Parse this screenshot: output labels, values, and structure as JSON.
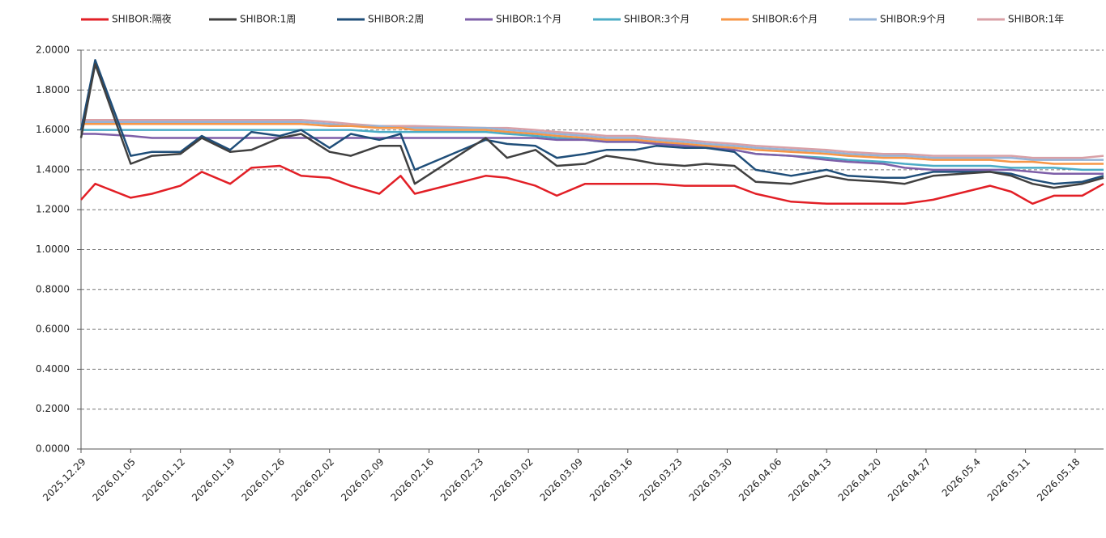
{
  "chart_data": {
    "type": "line",
    "x": [
      "2025.12.29",
      "2025.12.31",
      "2026.01.05",
      "2026.01.08",
      "2026.01.12",
      "2026.01.15",
      "2026.01.19",
      "2026.01.22",
      "2026.01.26",
      "2026.01.29",
      "2026.02.02",
      "2026.02.05",
      "2026.02.09",
      "2026.02.12",
      "2026.02.14",
      "2026.02.24",
      "2026.02.27",
      "2026.03.03",
      "2026.03.06",
      "2026.03.10",
      "2026.03.13",
      "2026.03.17",
      "2026.03.20",
      "2026.03.24",
      "2026.03.27",
      "2026.03.31",
      "2026.04.03",
      "2026.04.08",
      "2026.04.13",
      "2026.04.16",
      "2026.04.21",
      "2026.04.24",
      "2026.04.28",
      "2026.05.06",
      "2026.05.09",
      "2026.05.12",
      "2026.05.15",
      "2026.05.19",
      "2026.05.22"
    ],
    "series": [
      {
        "name": "SHIBOR:隔夜",
        "color": "#e21f26",
        "values": [
          1.25,
          1.33,
          1.26,
          1.28,
          1.32,
          1.39,
          1.33,
          1.41,
          1.42,
          1.37,
          1.36,
          1.32,
          1.28,
          1.37,
          1.28,
          1.37,
          1.36,
          1.32,
          1.27,
          1.33,
          1.33,
          1.33,
          1.33,
          1.32,
          1.32,
          1.32,
          1.28,
          1.24,
          1.23,
          1.23,
          1.23,
          1.23,
          1.25,
          1.32,
          1.29,
          1.23,
          1.27,
          1.27,
          1.33
        ]
      },
      {
        "name": "SHIBOR:1周",
        "color": "#404040",
        "values": [
          1.56,
          1.93,
          1.43,
          1.47,
          1.48,
          1.56,
          1.49,
          1.5,
          1.56,
          1.58,
          1.49,
          1.47,
          1.52,
          1.52,
          1.33,
          1.56,
          1.46,
          1.5,
          1.42,
          1.43,
          1.47,
          1.45,
          1.43,
          1.42,
          1.43,
          1.42,
          1.34,
          1.33,
          1.37,
          1.35,
          1.34,
          1.33,
          1.37,
          1.39,
          1.37,
          1.33,
          1.31,
          1.33,
          1.36
        ]
      },
      {
        "name": "SHIBOR:2周",
        "color": "#1f4e79",
        "values": [
          1.6,
          1.95,
          1.47,
          1.49,
          1.49,
          1.57,
          1.5,
          1.59,
          1.57,
          1.6,
          1.51,
          1.58,
          1.55,
          1.58,
          1.4,
          1.55,
          1.53,
          1.52,
          1.46,
          1.48,
          1.5,
          1.5,
          1.52,
          1.51,
          1.51,
          1.49,
          1.4,
          1.37,
          1.4,
          1.37,
          1.36,
          1.36,
          1.39,
          1.39,
          1.38,
          1.35,
          1.33,
          1.34,
          1.37
        ]
      },
      {
        "name": "SHIBOR:1个月",
        "color": "#7e5fa8",
        "values": [
          1.58,
          1.58,
          1.57,
          1.56,
          1.56,
          1.56,
          1.56,
          1.56,
          1.56,
          1.56,
          1.56,
          1.56,
          1.56,
          1.56,
          1.56,
          1.56,
          1.56,
          1.56,
          1.55,
          1.55,
          1.54,
          1.54,
          1.53,
          1.52,
          1.51,
          1.5,
          1.48,
          1.47,
          1.45,
          1.44,
          1.43,
          1.41,
          1.4,
          1.4,
          1.4,
          1.39,
          1.38,
          1.38,
          1.38
        ]
      },
      {
        "name": "SHIBOR:3个月",
        "color": "#4bacc6",
        "values": [
          1.6,
          1.6,
          1.6,
          1.6,
          1.6,
          1.6,
          1.6,
          1.6,
          1.6,
          1.6,
          1.6,
          1.6,
          1.59,
          1.59,
          1.59,
          1.59,
          1.58,
          1.57,
          1.56,
          1.55,
          1.54,
          1.54,
          1.53,
          1.52,
          1.51,
          1.5,
          1.48,
          1.47,
          1.46,
          1.45,
          1.44,
          1.43,
          1.42,
          1.42,
          1.41,
          1.41,
          1.41,
          1.4,
          1.4
        ]
      },
      {
        "name": "SHIBOR:6个月",
        "color": "#f79646",
        "values": [
          1.63,
          1.63,
          1.63,
          1.63,
          1.63,
          1.63,
          1.63,
          1.63,
          1.63,
          1.63,
          1.62,
          1.62,
          1.61,
          1.61,
          1.6,
          1.6,
          1.59,
          1.58,
          1.57,
          1.56,
          1.55,
          1.55,
          1.54,
          1.53,
          1.52,
          1.51,
          1.5,
          1.49,
          1.48,
          1.47,
          1.46,
          1.46,
          1.45,
          1.45,
          1.44,
          1.44,
          1.43,
          1.43,
          1.43
        ]
      },
      {
        "name": "SHIBOR:9个月",
        "color": "#95b3d7",
        "values": [
          1.64,
          1.64,
          1.64,
          1.64,
          1.64,
          1.64,
          1.64,
          1.64,
          1.64,
          1.64,
          1.63,
          1.62,
          1.62,
          1.61,
          1.61,
          1.61,
          1.6,
          1.59,
          1.58,
          1.57,
          1.56,
          1.56,
          1.55,
          1.54,
          1.53,
          1.52,
          1.51,
          1.5,
          1.49,
          1.48,
          1.47,
          1.47,
          1.46,
          1.46,
          1.46,
          1.45,
          1.45,
          1.45,
          1.45
        ]
      },
      {
        "name": "SHIBOR:1年",
        "color": "#d9a0a6",
        "values": [
          1.65,
          1.65,
          1.65,
          1.65,
          1.65,
          1.65,
          1.65,
          1.65,
          1.65,
          1.65,
          1.64,
          1.63,
          1.62,
          1.62,
          1.62,
          1.61,
          1.61,
          1.6,
          1.59,
          1.58,
          1.57,
          1.57,
          1.56,
          1.55,
          1.54,
          1.53,
          1.52,
          1.51,
          1.5,
          1.49,
          1.48,
          1.48,
          1.47,
          1.47,
          1.47,
          1.46,
          1.46,
          1.46,
          1.47
        ]
      }
    ],
    "xlim": [
      "2025.12.29",
      "2026.05.22"
    ],
    "xticks": [
      "2025.12.29",
      "2026.01.05",
      "2026.01.12",
      "2026.01.19",
      "2026.01.26",
      "2026.02.02",
      "2026.02.09",
      "2026.02.16",
      "2026.02.23",
      "2026.03.02",
      "2026.03.09",
      "2026.03.16",
      "2026.03.23",
      "2026.03.30",
      "2026.04.06",
      "2026.04.13",
      "2026.04.20",
      "2026.04.27",
      {
        "value": "2026.05.04",
        "label": "2026.05.4"
      },
      "2026.05.11",
      "2026.05.18"
    ],
    "ylim": [
      0,
      2
    ],
    "yticks": [
      {
        "value": 0,
        "label": "0.0000"
      },
      {
        "value": 0.2,
        "label": "0.2000"
      },
      {
        "value": 0.4,
        "label": "0.4000"
      },
      {
        "value": 0.6,
        "label": "0.6000"
      },
      {
        "value": 0.8,
        "label": "0.8000"
      },
      {
        "value": 1,
        "label": "1.0000"
      },
      {
        "value": 1.2,
        "label": "1.2000"
      },
      {
        "value": 1.4,
        "label": "1.4000"
      },
      {
        "value": 1.6,
        "label": "1.6000"
      },
      {
        "value": 1.8,
        "label": "1.8000"
      },
      {
        "value": 2,
        "label": "2.0000"
      }
    ],
    "grid": true,
    "legend": "top"
  }
}
